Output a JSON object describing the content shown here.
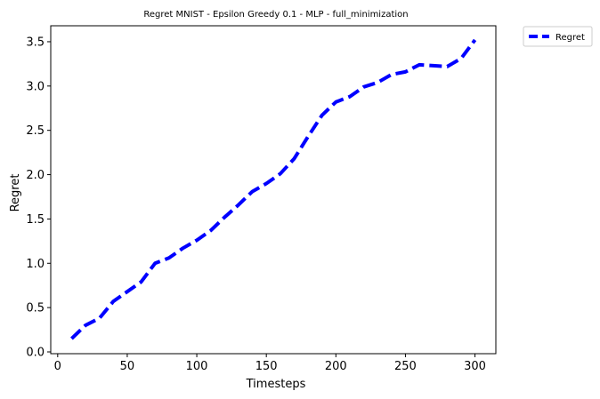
{
  "chart_data": {
    "type": "line",
    "title": "Regret MNIST - Epsilon Greedy 0.1 - MLP - full_minimization",
    "xlabel": "Timesteps",
    "ylabel": "Regret",
    "xlim": [
      -5,
      315
    ],
    "ylim": [
      -0.02,
      3.68
    ],
    "xticks": [
      0,
      50,
      100,
      150,
      200,
      250,
      300
    ],
    "xtick_labels": [
      "0",
      "50",
      "100",
      "150",
      "200",
      "250",
      "300"
    ],
    "yticks": [
      0.0,
      0.5,
      1.0,
      1.5,
      2.0,
      2.5,
      3.0,
      3.5
    ],
    "ytick_labels": [
      "0.0",
      "0.5",
      "1.0",
      "1.5",
      "2.0",
      "2.5",
      "3.0",
      "3.5"
    ],
    "grid": false,
    "legend": {
      "position": "outside-top-right",
      "entries": [
        "Regret"
      ]
    },
    "series": [
      {
        "name": "Regret",
        "color": "#0000ff",
        "style": "dashed",
        "x": [
          10,
          20,
          30,
          40,
          50,
          60,
          70,
          80,
          90,
          100,
          110,
          120,
          130,
          140,
          150,
          160,
          170,
          180,
          190,
          200,
          210,
          220,
          230,
          240,
          250,
          260,
          270,
          280,
          290,
          300
        ],
        "y": [
          0.15,
          0.3,
          0.38,
          0.57,
          0.68,
          0.79,
          1.0,
          1.06,
          1.17,
          1.26,
          1.37,
          1.52,
          1.66,
          1.81,
          1.9,
          2.01,
          2.18,
          2.43,
          2.67,
          2.82,
          2.88,
          2.99,
          3.04,
          3.13,
          3.16,
          3.24,
          3.23,
          3.22,
          3.31,
          3.52
        ]
      }
    ]
  }
}
